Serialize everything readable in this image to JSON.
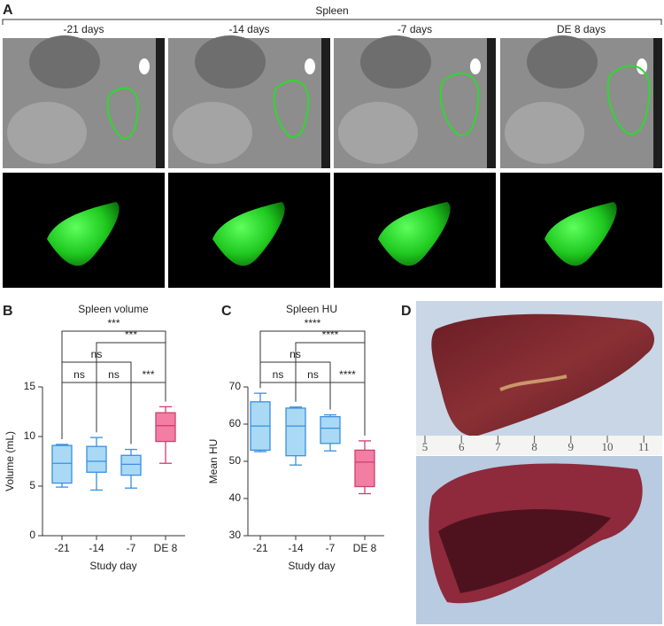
{
  "panel_labels": [
    "A",
    "B",
    "C",
    "D"
  ],
  "panel_a": {
    "title": "Spleen",
    "columns": [
      "-21 days",
      "-14 days",
      "-7 days",
      "DE 8 days"
    ]
  },
  "chart_data": [
    {
      "type": "box",
      "title": "Spleen volume",
      "x_label": "Study day",
      "y_label": "Volume (mL)",
      "categories": [
        "-21",
        "-14",
        "-7",
        "DE 8"
      ],
      "colors": [
        "#a9d9f5",
        "#a9d9f5",
        "#a9d9f5",
        "#f27ea3"
      ],
      "whisker_low": [
        4.9,
        4.6,
        4.8,
        7.3
      ],
      "q1": [
        5.3,
        6.4,
        6.1,
        9.5
      ],
      "median": [
        7.3,
        7.5,
        7.2,
        11.1
      ],
      "q3": [
        9.1,
        9.0,
        8.1,
        12.4
      ],
      "whisker_high": [
        9.2,
        9.9,
        8.7,
        13.0
      ],
      "ylim": [
        0,
        15
      ],
      "yticks": [
        0,
        5,
        10,
        15
      ],
      "comparisons": [
        {
          "pair": [
            "-21",
            "-14"
          ],
          "label": "ns"
        },
        {
          "pair": [
            "-14",
            "-7"
          ],
          "label": "ns"
        },
        {
          "pair": [
            "-7",
            "DE 8"
          ],
          "label": "***"
        },
        {
          "pair": [
            "-21",
            "-7"
          ],
          "label": "ns"
        },
        {
          "pair": [
            "-14",
            "DE 8"
          ],
          "label": "***"
        },
        {
          "pair": [
            "-21",
            "DE 8"
          ],
          "label": "***"
        }
      ]
    },
    {
      "type": "box",
      "title": "Spleen HU",
      "x_label": "Study day",
      "y_label": "Mean HU",
      "categories": [
        "-21",
        "-14",
        "-7",
        "DE 8"
      ],
      "colors": [
        "#a9d9f5",
        "#a9d9f5",
        "#a9d9f5",
        "#f27ea3"
      ],
      "whisker_low": [
        52.6,
        49,
        52.8,
        41.3
      ],
      "q1": [
        53.0,
        51.5,
        54.8,
        43.2
      ],
      "median": [
        59.5,
        59.5,
        58.9,
        49.8
      ],
      "q3": [
        66,
        64.3,
        62,
        53
      ],
      "whisker_high": [
        68.3,
        64.6,
        62.5,
        55.5
      ],
      "ylim": [
        30,
        70
      ],
      "yticks": [
        30,
        40,
        50,
        60,
        70
      ],
      "comparisons": [
        {
          "pair": [
            "-21",
            "-14"
          ],
          "label": "ns"
        },
        {
          "pair": [
            "-14",
            "-7"
          ],
          "label": "ns"
        },
        {
          "pair": [
            "-7",
            "DE 8"
          ],
          "label": "****"
        },
        {
          "pair": [
            "-21",
            "-7"
          ],
          "label": "ns"
        },
        {
          "pair": [
            "-14",
            "DE 8"
          ],
          "label": "****"
        },
        {
          "pair": [
            "-21",
            "DE 8"
          ],
          "label": "****"
        }
      ]
    }
  ],
  "panel_d": {
    "ruler_labels": [
      5,
      6,
      7,
      8,
      9,
      10,
      11
    ]
  }
}
